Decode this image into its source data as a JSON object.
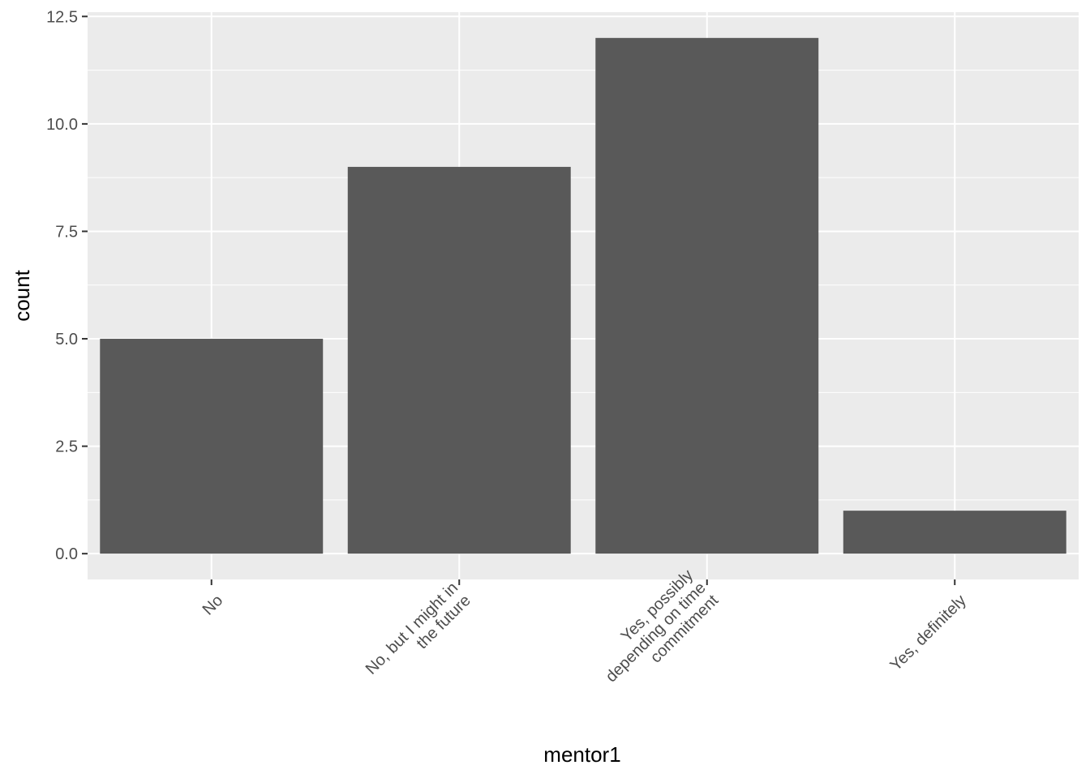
{
  "chart_data": {
    "type": "bar",
    "title": "",
    "xlabel": "mentor1",
    "ylabel": "count",
    "categories": [
      [
        "No"
      ],
      [
        "No, but I might in",
        "the future"
      ],
      [
        "Yes, possibly",
        "depending on time",
        "commitment"
      ],
      [
        "Yes, definitely"
      ]
    ],
    "values": [
      5,
      9,
      12,
      1
    ],
    "ylim": [
      -0.6,
      12.6
    ],
    "yticks": [
      0,
      2.5,
      5,
      7.5,
      10,
      12.5
    ],
    "ytick_labels": [
      "0.0",
      "2.5",
      "5.0",
      "7.5",
      "10.0",
      "12.5"
    ],
    "grid": true,
    "colors": {
      "panel_background": "#ebebeb",
      "gridline": "#ffffff",
      "bar_fill": "#595959",
      "tick_text": "#4d4d4d",
      "tick_mark": "#333333",
      "axis_title": "#000000"
    }
  }
}
